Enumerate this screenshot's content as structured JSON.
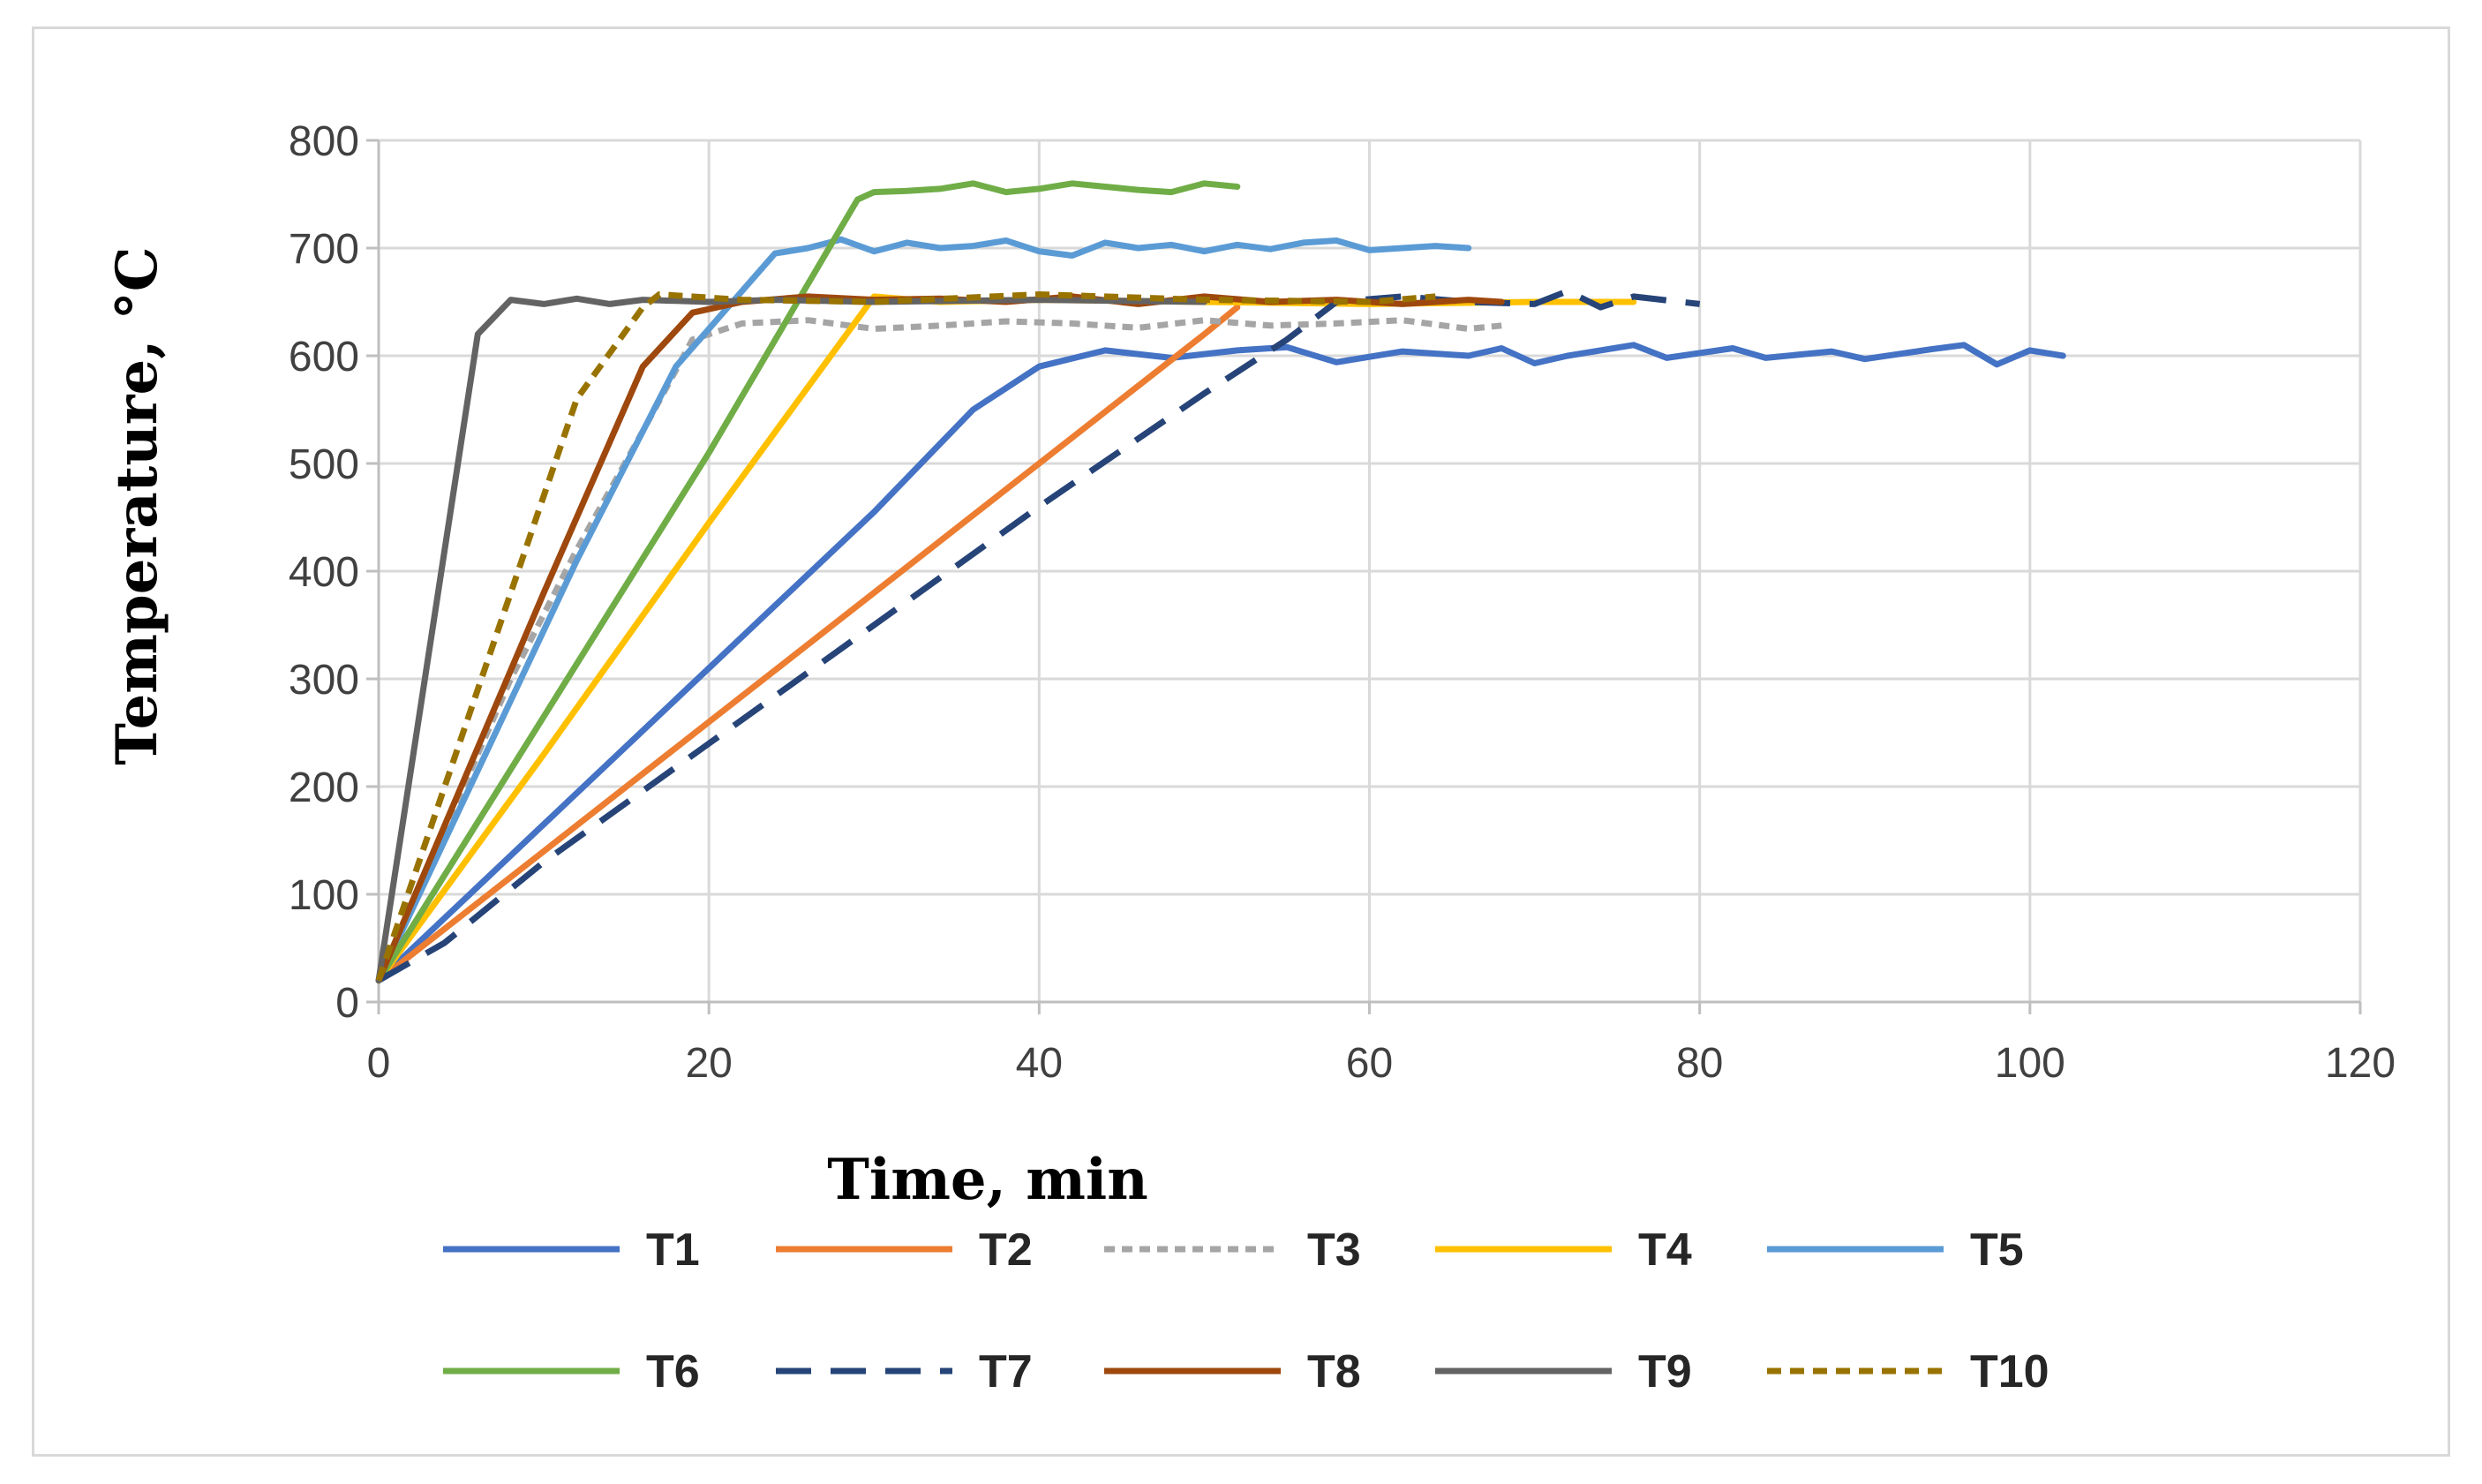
{
  "chart_data": {
    "type": "line",
    "xlabel": "Time, min",
    "ylabel": "Temperature, °C",
    "xlim": [
      0,
      120
    ],
    "ylim": [
      0,
      800
    ],
    "xticks": [
      0,
      20,
      40,
      60,
      80,
      100,
      120
    ],
    "yticks": [
      0,
      100,
      200,
      300,
      400,
      500,
      600,
      700,
      800
    ],
    "grid": true,
    "legend_position": "bottom",
    "series": [
      {
        "name": "T1",
        "color": "#4472c4",
        "dash": "solid",
        "x": [
          0,
          10,
          20,
          30,
          36,
          40,
          44,
          48,
          52,
          55,
          58,
          62,
          66,
          68,
          70,
          72,
          76,
          78,
          82,
          84,
          88,
          90,
          94,
          96,
          98,
          100,
          102
        ],
        "y": [
          20,
          165,
          310,
          455,
          550,
          590,
          605,
          598,
          605,
          608,
          594,
          604,
          600,
          607,
          593,
          600,
          610,
          598,
          607,
          598,
          604,
          597,
          606,
          610,
          592,
          605,
          600
        ]
      },
      {
        "name": "T2",
        "color": "#ed7d31",
        "dash": "solid",
        "x": [
          0,
          10,
          20,
          30,
          40,
          50,
          52
        ],
        "y": [
          20,
          140,
          260,
          380,
          500,
          620,
          645
        ]
      },
      {
        "name": "T3",
        "color": "#a5a5a5",
        "dash": "12 8",
        "x": [
          0,
          4,
          8,
          12,
          16,
          19,
          22,
          26,
          30,
          34,
          38,
          42,
          46,
          50,
          54,
          58,
          62,
          66,
          68
        ],
        "y": [
          20,
          160,
          300,
          420,
          530,
          615,
          630,
          633,
          625,
          628,
          632,
          630,
          626,
          633,
          628,
          630,
          633,
          625,
          628
        ]
      },
      {
        "name": "T4",
        "color": "#ffc000",
        "dash": "solid",
        "x": [
          0,
          10,
          20,
          30,
          34,
          40,
          50,
          60,
          70,
          76
        ],
        "y": [
          20,
          230,
          445,
          655,
          650,
          652,
          650,
          648,
          650,
          650
        ]
      },
      {
        "name": "T5",
        "color": "#5b9bd5",
        "dash": "solid",
        "x": [
          0,
          6,
          12,
          18,
          22,
          24,
          26,
          28,
          30,
          32,
          34,
          36,
          38,
          40,
          42,
          44,
          46,
          48,
          50,
          52,
          54,
          56,
          58,
          60,
          62,
          64,
          66
        ],
        "y": [
          20,
          215,
          410,
          590,
          660,
          695,
          700,
          708,
          697,
          705,
          700,
          702,
          707,
          697,
          693,
          705,
          700,
          703,
          697,
          703,
          699,
          705,
          707,
          698,
          700,
          702,
          700
        ]
      },
      {
        "name": "T6",
        "color": "#70ad47",
        "dash": "solid",
        "x": [
          0,
          10,
          20,
          29,
          30,
          32,
          34,
          36,
          38,
          40,
          42,
          44,
          46,
          48,
          50,
          52
        ],
        "y": [
          20,
          265,
          510,
          745,
          752,
          753,
          755,
          760,
          752,
          755,
          760,
          757,
          754,
          752,
          760,
          757
        ]
      },
      {
        "name": "T7",
        "color": "#264478",
        "dash": "40 22",
        "x": [
          0,
          4,
          10,
          20,
          30,
          40,
          50,
          55,
          58,
          62,
          66,
          70,
          72,
          74,
          76,
          80
        ],
        "y": [
          20,
          55,
          130,
          240,
          350,
          460,
          565,
          615,
          650,
          655,
          650,
          648,
          660,
          645,
          655,
          648
        ]
      },
      {
        "name": "T8",
        "color": "#9e480e",
        "dash": "solid",
        "x": [
          0,
          5,
          10,
          16,
          19,
          22,
          26,
          30,
          34,
          38,
          42,
          46,
          50,
          54,
          58,
          62,
          66,
          68
        ],
        "y": [
          20,
          200,
          380,
          590,
          640,
          650,
          655,
          652,
          653,
          650,
          655,
          648,
          655,
          650,
          652,
          648,
          652,
          650
        ]
      },
      {
        "name": "T9",
        "color": "#636363",
        "dash": "solid",
        "x": [
          0,
          2,
          4,
          6,
          8,
          10,
          12,
          14,
          16,
          20,
          24,
          30,
          40,
          50
        ],
        "y": [
          20,
          220,
          420,
          620,
          652,
          648,
          653,
          648,
          652,
          650,
          652,
          650,
          652,
          650
        ]
      },
      {
        "name": "T10",
        "color": "#997300",
        "dash": "16 10",
        "x": [
          0,
          4,
          8,
          12,
          16,
          17,
          22,
          30,
          40,
          50,
          60,
          64
        ],
        "y": [
          20,
          200,
          380,
          560,
          645,
          657,
          652,
          650,
          657,
          652,
          650,
          655
        ]
      }
    ]
  }
}
